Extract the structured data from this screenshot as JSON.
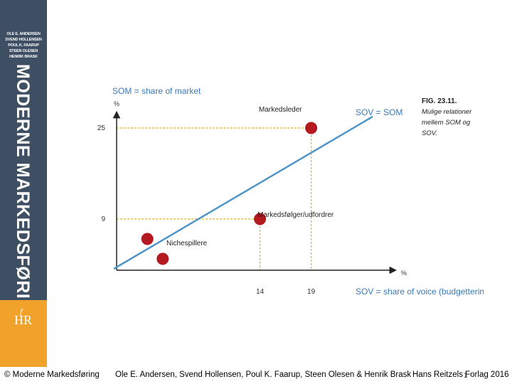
{
  "sidebar": {
    "authors": [
      "OLE E. ANDERSEN",
      "SVEND HOLLENSEN",
      "POUL K. FAARUP",
      "STEEN OLESEN",
      "HENRIK BRASK"
    ],
    "book_title": "MODERNE MARKEDSFØRING",
    "logo_main": "HR",
    "logo_f": "f",
    "colors": {
      "panel": "#3e4f64",
      "logo_box": "#f0a22b"
    }
  },
  "chart_data": {
    "type": "scatter",
    "title": "SOM = share of market",
    "ylabel": "%",
    "xlabel": "%",
    "x_axis_title": "SOV = share of voice (budgettering)",
    "xlim": [
      0,
      25
    ],
    "ylim": [
      0,
      30
    ],
    "x_ticks": [
      14,
      19
    ],
    "y_ticks": [
      9,
      25
    ],
    "reference_line": {
      "label": "SOV = SOM",
      "from": [
        0,
        0
      ],
      "to": [
        25,
        27
      ]
    },
    "points": [
      {
        "name": "Markedsleder",
        "x": 19,
        "y": 25
      },
      {
        "name": "Markedsfølger/udfordrer",
        "x": 14,
        "y": 9
      },
      {
        "name": "Nichespillere",
        "x": 3,
        "y": 5.5
      },
      {
        "name": "Nichespillere",
        "x": 4.5,
        "y": 2
      }
    ],
    "cluster_label": "Nichespillere",
    "caption": {
      "fig": "FIG. 23.11.",
      "lines": [
        "Mulige relationer",
        "mellem SOM og",
        "SOV."
      ]
    },
    "colors": {
      "line": "#4f95c7",
      "points": "#b3191f",
      "guides": "#e5b422",
      "text": "#3a7ab8",
      "axis": "#222222"
    }
  },
  "footer": {
    "copyright": "© Moderne Markedsføring",
    "authors": "Ole E. Andersen, Svend Hollensen, Poul K. Faarup, Steen Olesen & Henrik Brask",
    "publisher": "Hans Reitzels Forlag 2016",
    "page_number": "1"
  }
}
